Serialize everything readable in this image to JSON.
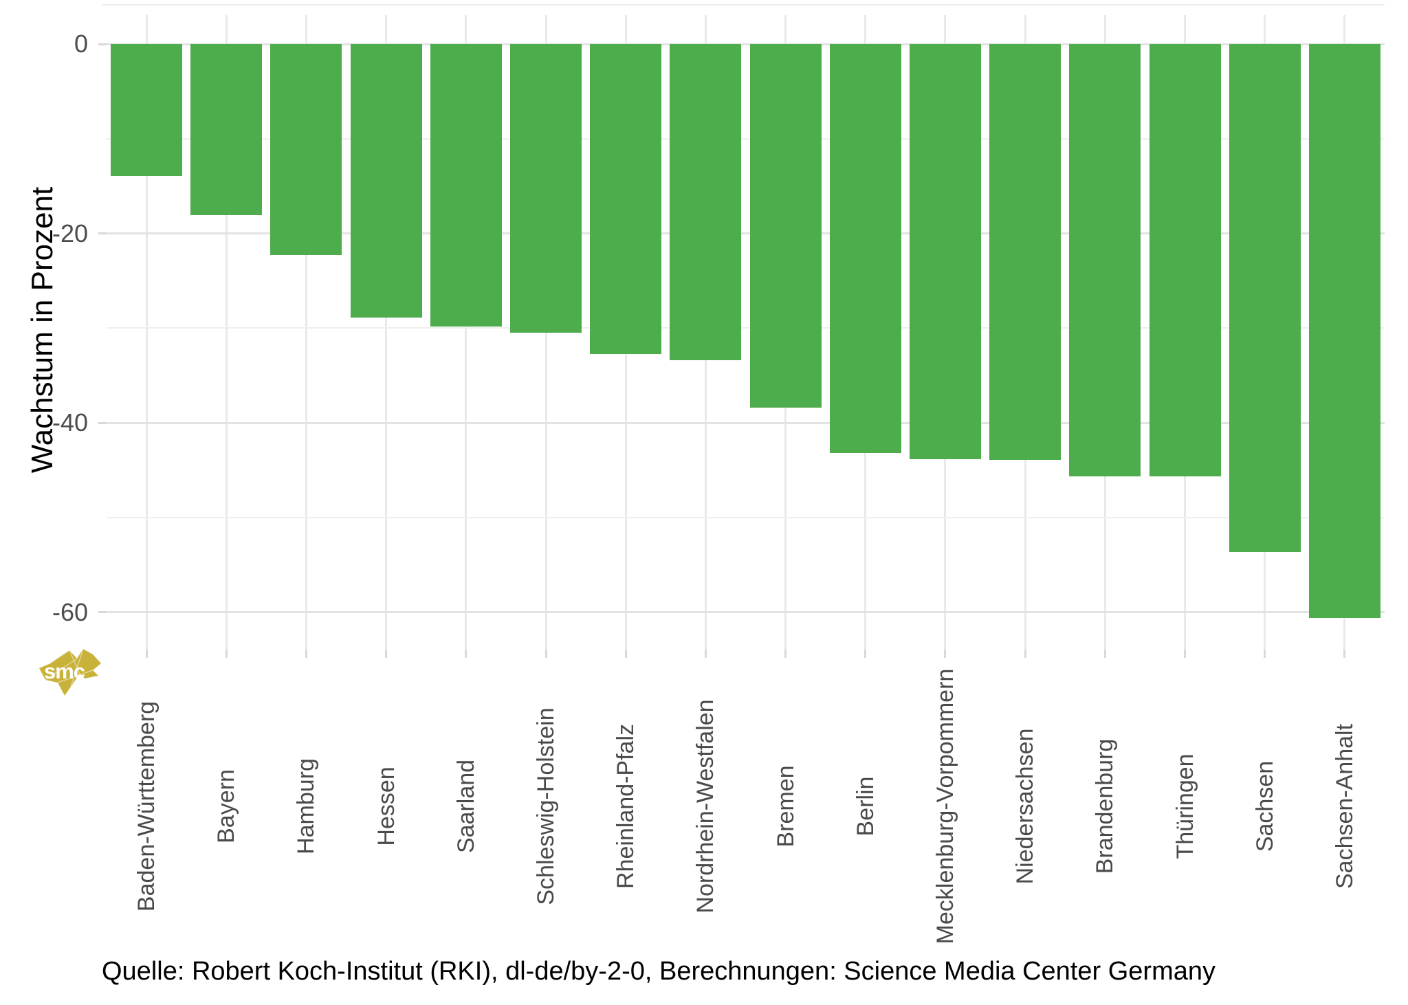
{
  "chart_data": {
    "type": "bar",
    "title": "",
    "categories": [
      "Baden-Württemberg",
      "Bayern",
      "Hamburg",
      "Hessen",
      "Saarland",
      "Schleswig-Holstein",
      "Rheinland-Pfalz",
      "Nordrhein-Westfalen",
      "Bremen",
      "Berlin",
      "Mecklenburg-Vorpommern",
      "Niedersachsen",
      "Brandenburg",
      "Thüringen",
      "Sachsen",
      "Sachsen-Anhalt"
    ],
    "values": [
      -13.9,
      -18.1,
      -22.3,
      -28.9,
      -29.8,
      -30.5,
      -32.7,
      -33.4,
      -38.4,
      -43.2,
      -43.8,
      -43.9,
      -45.6,
      -45.6,
      -53.6,
      -60.6
    ],
    "xlabel": "",
    "ylabel": "Wachstum in Prozent",
    "ylim": [
      -64.5,
      4
    ],
    "y_major_breaks": [
      0,
      -20,
      -40,
      -60
    ],
    "y_major_labels": [
      "0",
      "-20",
      "-40",
      "-60"
    ],
    "y_minor_breaks": [
      -10,
      -30,
      -50
    ],
    "grid": "on",
    "legend": "none",
    "bar_color": "#4dac4b",
    "caption": "Quelle: Robert Koch-Institut (RKI), dl-de/by-2-0, Berechnungen: Science Media Center Germany",
    "logo": {
      "text": "smc",
      "fill_color": "#c9b23a",
      "text_color": "#ffffff"
    }
  }
}
